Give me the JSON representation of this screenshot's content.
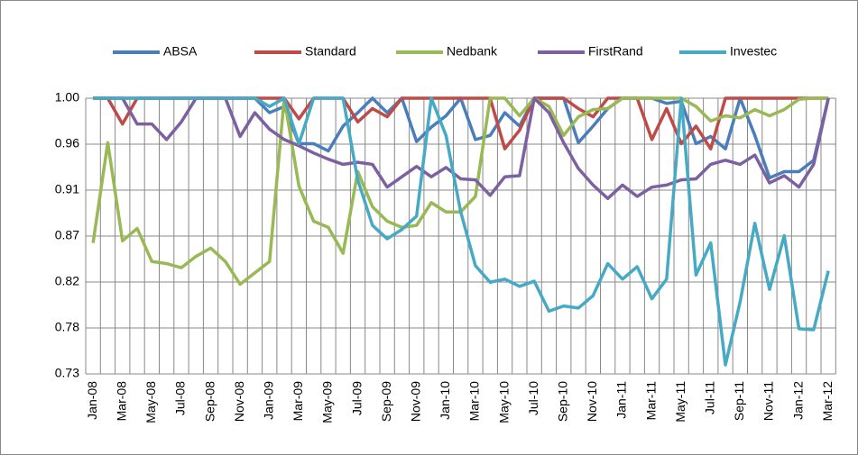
{
  "chart_data": {
    "type": "line",
    "categories": [
      "Jan-08",
      null,
      "Mar-08",
      null,
      "May-08",
      null,
      "Jul-08",
      null,
      "Sep-08",
      null,
      "Nov-08",
      null,
      "Jan-09",
      null,
      "Mar-09",
      null,
      "May-09",
      null,
      "Jul-09",
      null,
      "Sep-09",
      null,
      "Nov-09",
      null,
      "Jan-10",
      null,
      "Mar-10",
      null,
      "May-10",
      null,
      "Jul-10",
      null,
      "Sep-10",
      null,
      "Nov-10",
      null,
      "Jan-11",
      null,
      "Mar-11",
      null,
      "May-11",
      null,
      "Jul-11",
      null,
      "Sep-11",
      null,
      "Nov-11",
      null,
      "Jan-12",
      null,
      "Mar-12"
    ],
    "series": [
      {
        "name": "ABSA",
        "color": "#4a7ebb",
        "values": [
          1,
          1,
          1,
          1,
          1,
          1,
          1,
          1,
          1,
          1,
          1,
          1,
          0.986,
          0.992,
          0.956,
          0.956,
          0.949,
          0.973,
          0.986,
          1,
          0.986,
          1,
          0.958,
          0.972,
          0.983,
          1,
          0.96,
          0.964,
          0.986,
          0.973,
          1,
          1,
          1,
          0.957,
          0.973,
          0.99,
          1,
          1,
          1,
          0.995,
          0.997,
          0.956,
          0.963,
          0.951,
          1,
          0.964,
          0.923,
          0.929,
          0.929,
          0.94,
          1
        ]
      },
      {
        "name": "Standard",
        "color": "#be4b48",
        "values": [
          1,
          1,
          0.975,
          1,
          1,
          1,
          1,
          1,
          1,
          1,
          1,
          1,
          1,
          1,
          0.98,
          1,
          1,
          1,
          0.977,
          0.99,
          0.982,
          1,
          1,
          1,
          1,
          1,
          1,
          1,
          0.951,
          0.969,
          1,
          1,
          1,
          0.99,
          0.982,
          1,
          1,
          1,
          0.96,
          0.99,
          0.956,
          0.973,
          0.951,
          1,
          1,
          1,
          1,
          1,
          1,
          1,
          1
        ]
      },
      {
        "name": "Nedbank",
        "color": "#98b954",
        "values": [
          0.86,
          0.957,
          0.862,
          0.874,
          0.842,
          0.84,
          0.836,
          0.847,
          0.855,
          0.842,
          0.82,
          0.831,
          0.842,
          1,
          0.915,
          0.881,
          0.875,
          0.85,
          0.929,
          0.895,
          0.881,
          0.875,
          0.877,
          0.899,
          0.89,
          0.89,
          0.905,
          1,
          1,
          0.983,
          1,
          0.992,
          0.964,
          0.982,
          0.989,
          0.99,
          1,
          1,
          1,
          1,
          1,
          0.992,
          0.978,
          0.983,
          0.981,
          0.989,
          0.983,
          0.989,
          0.999,
          1,
          1
        ]
      },
      {
        "name": "FirstRand",
        "color": "#7d60a0",
        "values": [
          1,
          1,
          1,
          0.975,
          0.975,
          0.96,
          0.977,
          1,
          1,
          1,
          0.963,
          0.986,
          0.97,
          0.96,
          0.954,
          0.947,
          0.941,
          0.936,
          0.938,
          0.936,
          0.914,
          0.924,
          0.934,
          0.924,
          0.933,
          0.922,
          0.921,
          0.906,
          0.924,
          0.925,
          1,
          0.986,
          0.957,
          0.932,
          0.916,
          0.903,
          0.916,
          0.905,
          0.914,
          0.916,
          0.921,
          0.922,
          0.936,
          0.94,
          0.936,
          0.945,
          0.918,
          0.925,
          0.914,
          0.936,
          1
        ]
      },
      {
        "name": "Investec",
        "color": "#46aac5",
        "values": [
          1,
          1,
          1,
          1,
          1,
          1,
          1,
          1,
          1,
          1,
          1,
          1,
          0.992,
          1,
          0.956,
          1,
          1,
          1,
          0.921,
          0.877,
          0.864,
          0.873,
          0.886,
          1,
          0.964,
          0.89,
          0.838,
          0.822,
          0.825,
          0.818,
          0.823,
          0.794,
          0.799,
          0.797,
          0.809,
          0.84,
          0.825,
          0.837,
          0.806,
          0.825,
          1,
          0.829,
          0.86,
          0.742,
          0.803,
          0.879,
          0.815,
          0.867,
          0.777,
          0.776,
          0.833
        ]
      }
    ],
    "ylim": [
      0.7333,
      1
    ],
    "yticks": [
      {
        "value": 0.7333,
        "label": "0.73"
      },
      {
        "value": 0.7778,
        "label": "0.78"
      },
      {
        "value": 0.8222,
        "label": "0.82"
      },
      {
        "value": 0.8667,
        "label": "0.87"
      },
      {
        "value": 0.9111,
        "label": "0.91"
      },
      {
        "value": 0.9556,
        "label": "0.96"
      },
      {
        "value": 1,
        "label": "1.00"
      }
    ],
    "grid": true,
    "legend": "top"
  }
}
